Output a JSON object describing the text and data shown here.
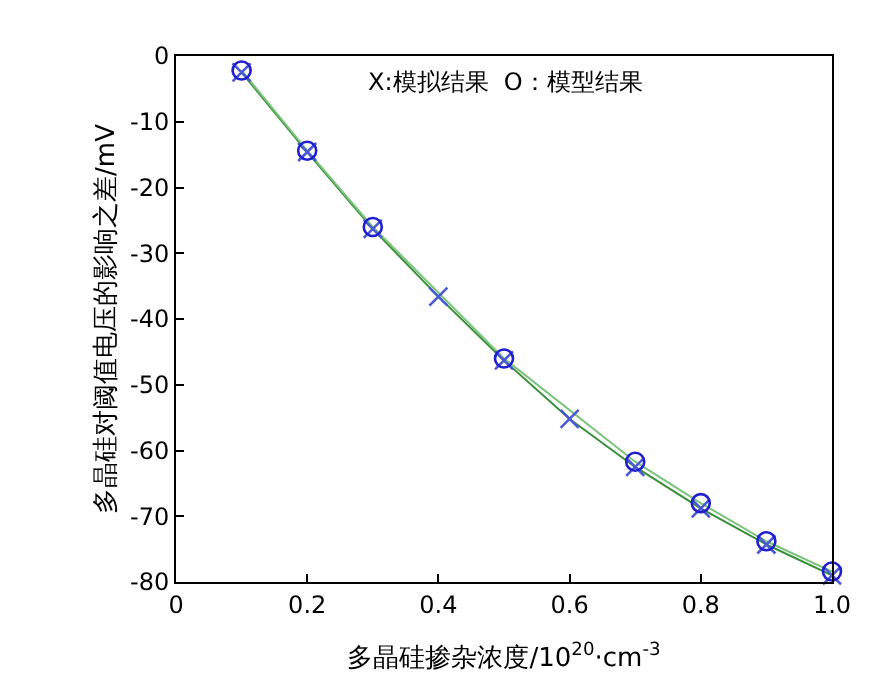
{
  "chart_data": {
    "type": "line",
    "xlabel": "多晶硅掺杂浓度/10$^{20}$·cm$^{-3}$",
    "ylabel": "多晶硅对阈值电压的影响之差/mV",
    "annotations": [
      "X:模拟结果  O：模型结果"
    ],
    "series": [
      {
        "color": "#3a8f3a",
        "marker": "none",
        "x": [
          0.1,
          0.2,
          0.3,
          0.4,
          0.5,
          0.6,
          0.7,
          0.8,
          0.9,
          1.0
        ],
        "values": [
          -2.5,
          -14.6,
          -26.3,
          -36.6,
          -46.3,
          -55.2,
          -62.5,
          -68.8,
          -74.3,
          -79
        ]
      },
      {
        "color": "#7cc47c",
        "marker": "none",
        "x": [
          0.1,
          0.2,
          0.3,
          0.5,
          0.7,
          0.8,
          0.9,
          1.0
        ],
        "values": [
          -2.2,
          -14.4,
          -26,
          -46,
          -61.7,
          -68,
          -73.8,
          -78.4
        ]
      },
      {
        "type": "scatter",
        "color": "#4a5ad0",
        "marker": "cross",
        "x": [
          0.1,
          0.2,
          0.3,
          0.4,
          0.5,
          0.6,
          0.7,
          0.8,
          0.9,
          1.0
        ],
        "values": [
          -2.5,
          -14.6,
          -26.3,
          -36.6,
          -46.3,
          -55.2,
          -62.5,
          -68.8,
          -74.3,
          -79
        ]
      },
      {
        "type": "scatter",
        "color": "#1f1fd0",
        "marker": "circle",
        "x": [
          0.1,
          0.2,
          0.3,
          0.5,
          0.7,
          0.8,
          0.9,
          1.0
        ],
        "values": [
          -2.2,
          -14.4,
          -26,
          -46,
          -61.7,
          -68,
          -73.8,
          -78.4
        ]
      }
    ],
    "xlim": [
      0,
      1.0
    ],
    "xticks": [
      0,
      0.2,
      0.4,
      0.6,
      0.8,
      {
        "value": 1.0,
        "label": "1.0"
      }
    ],
    "ylim": [
      -80,
      0
    ],
    "yticks": [
      -80,
      -70,
      -60,
      -50,
      -40,
      -30,
      -20,
      -10,
      0
    ]
  }
}
